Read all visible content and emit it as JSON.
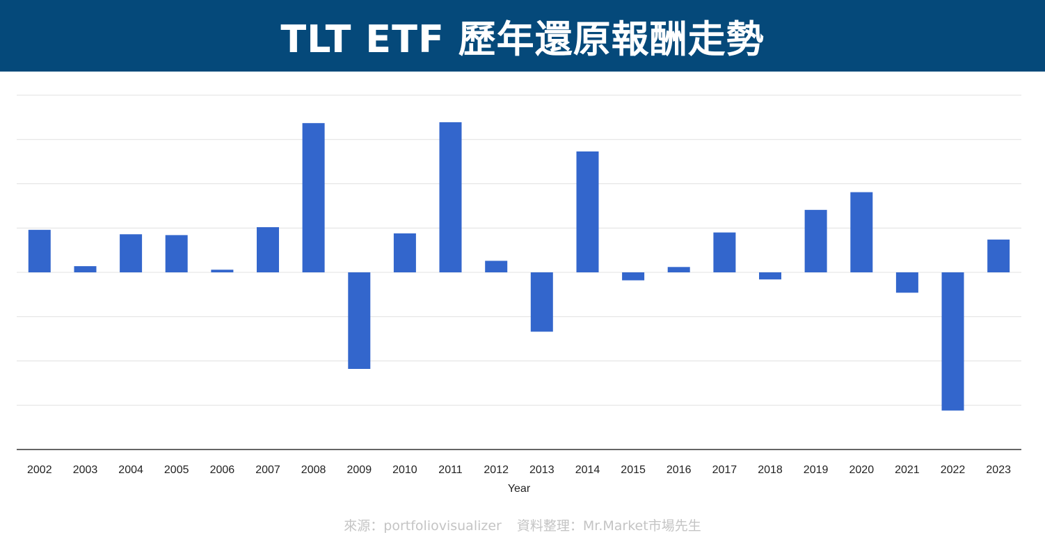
{
  "header": {
    "title": "TLT ETF 歷年還原報酬走勢"
  },
  "footer": {
    "source": "來源：portfoliovisualizer",
    "compiled_by": "資料整理：Mr.Market市場先生"
  },
  "colors": {
    "banner": "#05497a",
    "bar": "#3366cc",
    "grid": "#e0e0e0",
    "baseline": "#333333"
  },
  "chart_data": {
    "type": "bar",
    "title": "",
    "xlabel": "Year",
    "ylabel": "",
    "ylim": [
      -40,
      40
    ],
    "y_tick_step": 10,
    "y_tick_labels_shown": false,
    "grid": true,
    "legend": "none",
    "categories": [
      "2002",
      "2003",
      "2004",
      "2005",
      "2006",
      "2007",
      "2008",
      "2009",
      "2010",
      "2011",
      "2012",
      "2013",
      "2014",
      "2015",
      "2016",
      "2017",
      "2018",
      "2019",
      "2020",
      "2021",
      "2022",
      "2023"
    ],
    "values": [
      9.6,
      1.4,
      8.6,
      8.4,
      0.6,
      10.2,
      33.7,
      -21.8,
      8.8,
      33.9,
      2.6,
      -13.4,
      27.3,
      -1.8,
      1.2,
      9.0,
      -1.6,
      14.1,
      18.1,
      -4.6,
      -31.2,
      7.4
    ]
  }
}
